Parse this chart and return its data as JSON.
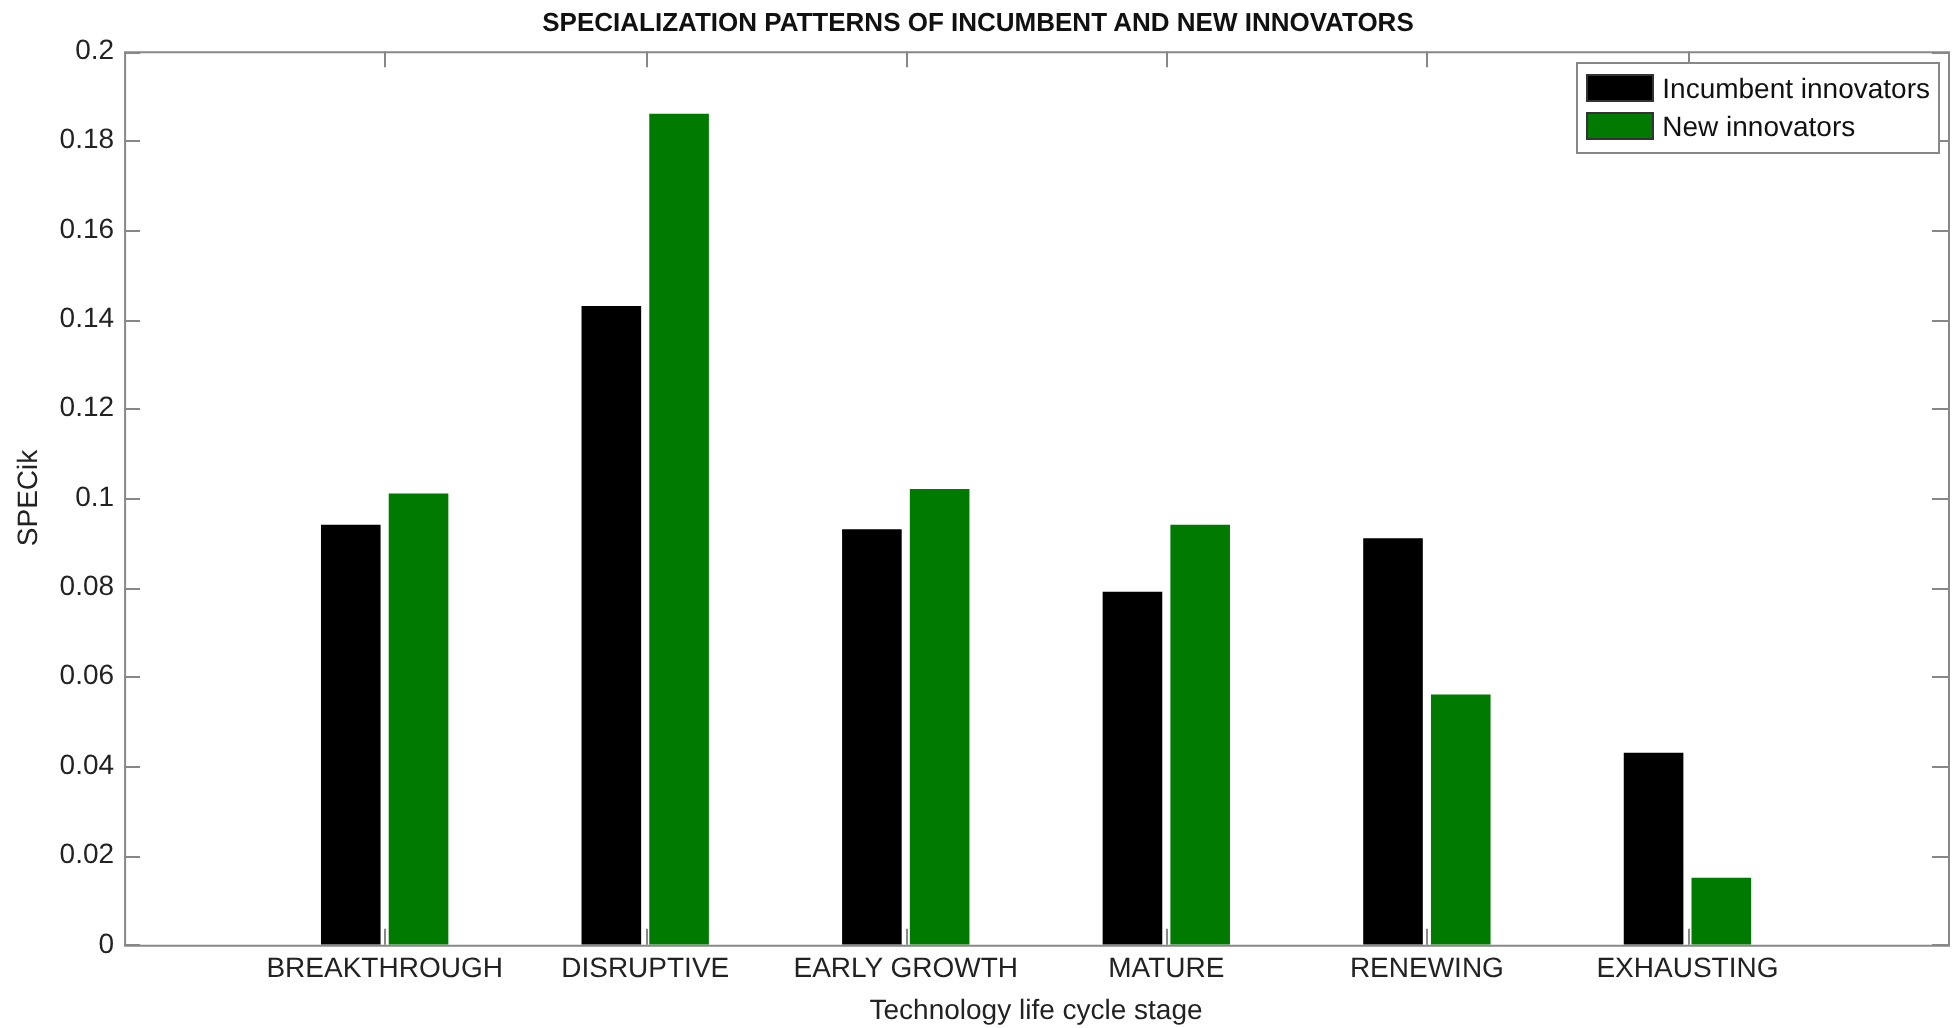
{
  "chart_data": {
    "type": "bar",
    "title": "SPECIALIZATION PATTERNS OF INCUMBENT AND NEW INNOVATORS",
    "xlabel": "Technology life cycle stage",
    "ylabel": "SPECik",
    "categories": [
      "BREAKTHROUGH",
      "DISRUPTIVE",
      "EARLY GROWTH",
      "MATURE",
      "RENEWING",
      "EXHAUSTING"
    ],
    "series": [
      {
        "name": "Incumbent innovators",
        "color": "#000000",
        "values": [
          0.094,
          0.143,
          0.093,
          0.079,
          0.091,
          0.043
        ]
      },
      {
        "name": "New innovators",
        "color": "#007a00",
        "values": [
          0.101,
          0.186,
          0.102,
          0.094,
          0.056,
          0.015
        ]
      }
    ],
    "ylim": [
      0,
      0.2
    ],
    "yticks": [
      0,
      0.02,
      0.04,
      0.06,
      0.08,
      0.1,
      0.12,
      0.14,
      0.16,
      0.18,
      0.2
    ],
    "grid": false,
    "legend": "top right"
  }
}
